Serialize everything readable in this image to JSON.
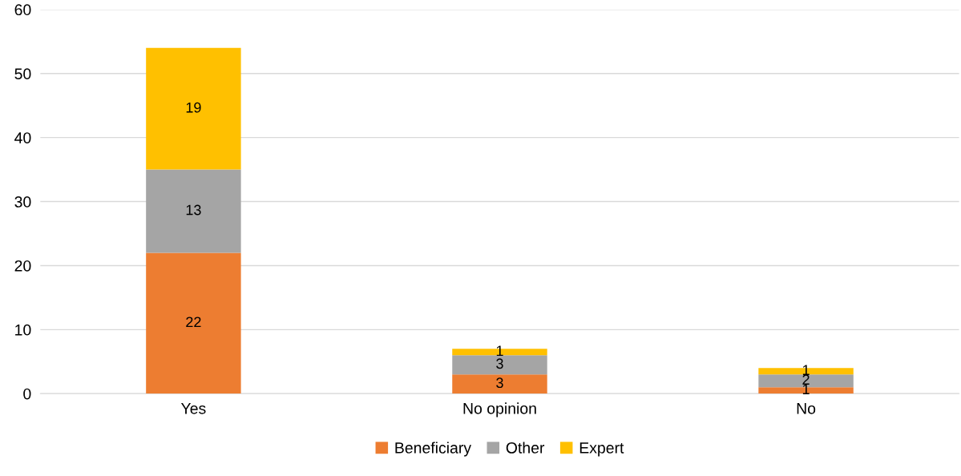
{
  "chart_data": {
    "type": "bar",
    "stacked": true,
    "categories": [
      "Yes",
      "No opinion",
      "No"
    ],
    "series": [
      {
        "name": "Beneficiary",
        "color": "#ed7d31",
        "values": [
          22,
          3,
          1
        ]
      },
      {
        "name": "Other",
        "color": "#a5a5a5",
        "values": [
          13,
          3,
          2
        ]
      },
      {
        "name": "Expert",
        "color": "#ffc000",
        "values": [
          19,
          1,
          1
        ]
      }
    ],
    "ylim": [
      0,
      60
    ],
    "yticks": [
      0,
      10,
      20,
      30,
      40,
      50,
      60
    ],
    "grid": "y",
    "legend": "bottom",
    "data_labels": true
  }
}
